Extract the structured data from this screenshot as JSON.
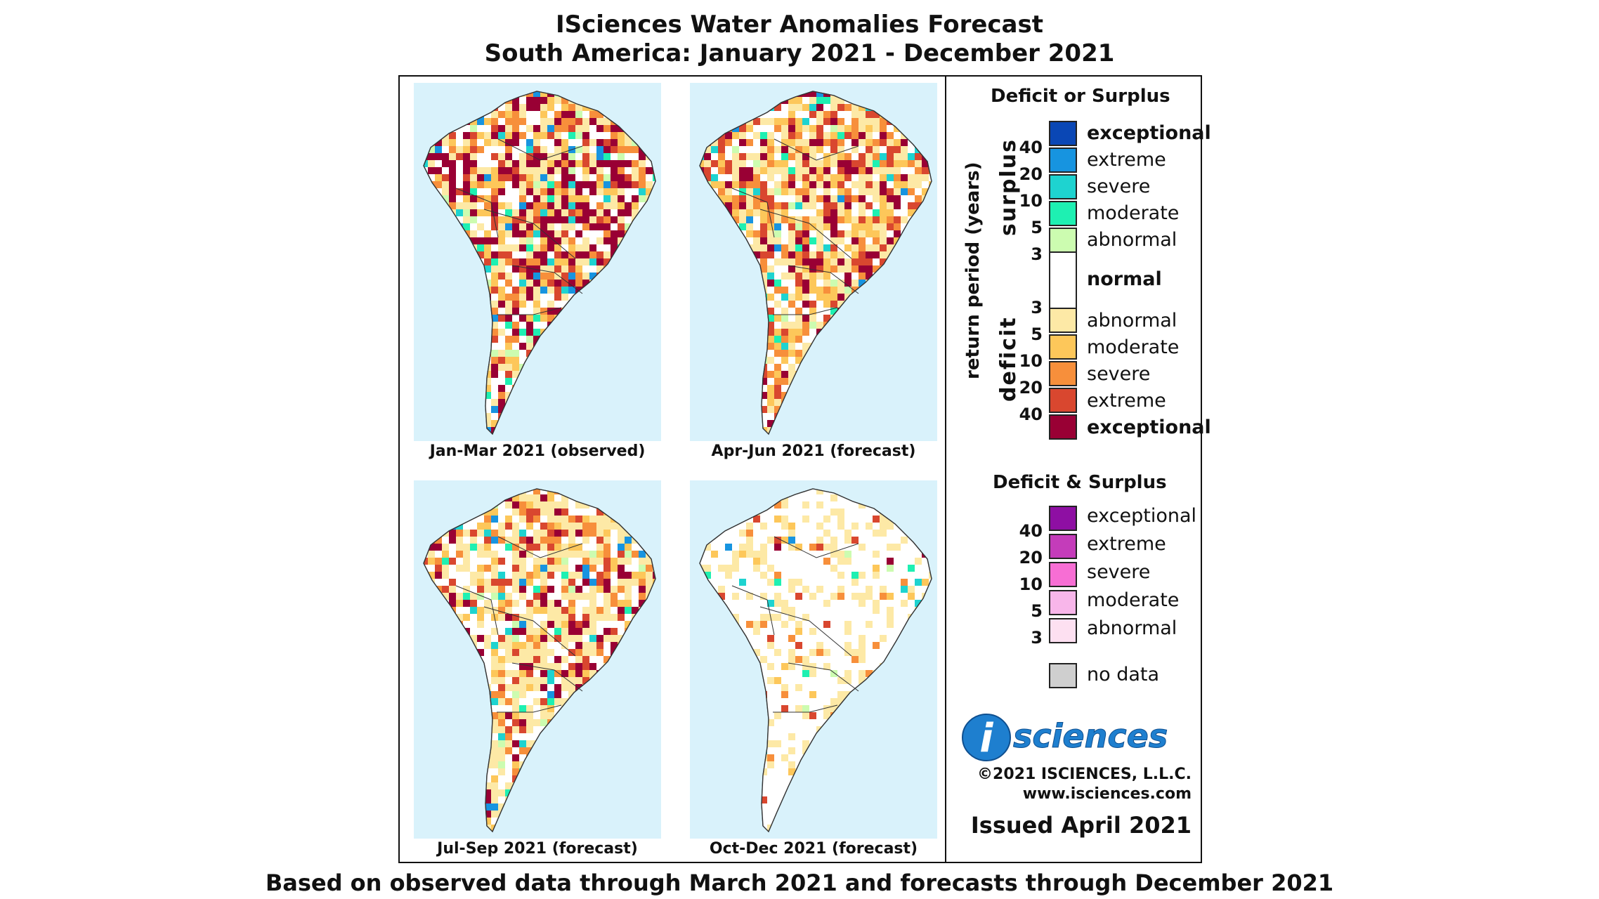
{
  "header": {
    "title": "ISciences Water Anomalies Forecast",
    "subtitle": "South America: January 2021 - December 2021"
  },
  "maps": [
    {
      "caption": "Jan-Mar 2021 (observed)"
    },
    {
      "caption": "Apr-Jun 2021 (forecast)"
    },
    {
      "caption": "Jul-Sep 2021 (forecast)"
    },
    {
      "caption": "Oct-Dec 2021 (forecast)"
    }
  ],
  "legend": {
    "title1": "Deficit or Surplus",
    "axis_label": "return period (years)",
    "surplus_label": "surplus",
    "deficit_label": "deficit",
    "surplus_nums": [
      "40",
      "20",
      "10",
      "5",
      "3"
    ],
    "deficit_nums": [
      "3",
      "5",
      "10",
      "20",
      "40"
    ],
    "surplus": [
      {
        "label": "exceptional",
        "color": "#0a47b5"
      },
      {
        "label": "extreme",
        "color": "#1794e0"
      },
      {
        "label": "severe",
        "color": "#1ed3d0"
      },
      {
        "label": "moderate",
        "color": "#1ef0b2"
      },
      {
        "label": "abnormal",
        "color": "#ccfcb0"
      }
    ],
    "normal": "normal",
    "deficit": [
      {
        "label": "abnormal",
        "color": "#fde9a6"
      },
      {
        "label": "moderate",
        "color": "#fdc75a"
      },
      {
        "label": "severe",
        "color": "#f78f3b"
      },
      {
        "label": "extreme",
        "color": "#d9472f"
      },
      {
        "label": "exceptional",
        "color": "#990034"
      }
    ],
    "title2": "Deficit & Surplus",
    "both_nums": [
      "40",
      "20",
      "10",
      "5",
      "3"
    ],
    "both": [
      {
        "label": "exceptional",
        "color": "#8e0fa3"
      },
      {
        "label": "extreme",
        "color": "#c43cba"
      },
      {
        "label": "severe",
        "color": "#f76ed4"
      },
      {
        "label": "moderate",
        "color": "#f8b6ea"
      },
      {
        "label": "abnormal",
        "color": "#fde0f1"
      }
    ],
    "nodata": {
      "label": "no data",
      "color": "#cfcfcf"
    }
  },
  "logo": {
    "text": "sciences",
    "letter": "i"
  },
  "copyright": "©2021 ISCIENCES, L.L.C.",
  "website": "www.isciences.com",
  "issued": "Issued April 2021",
  "footer": "Based on observed data through March 2021 and forecasts through December 2021"
}
